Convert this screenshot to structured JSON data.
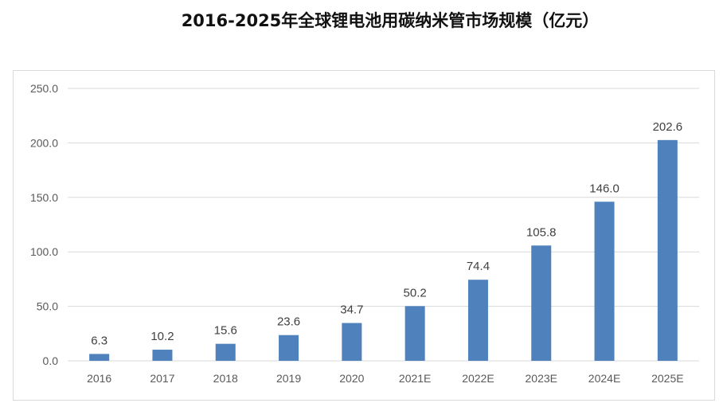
{
  "chart_data": {
    "type": "bar",
    "title": "2016-2025年全球锂电池用碳纳米管市场规模（亿元）",
    "categories": [
      "2016",
      "2017",
      "2018",
      "2019",
      "2020",
      "2021E",
      "2022E",
      "2023E",
      "2024E",
      "2025E"
    ],
    "values": [
      6.3,
      10.2,
      15.6,
      23.6,
      34.7,
      50.2,
      74.4,
      105.8,
      146.0,
      202.6
    ],
    "value_labels": [
      "6.3",
      "10.2",
      "15.6",
      "23.6",
      "34.7",
      "50.2",
      "74.4",
      "105.8",
      "146.0",
      "202.6"
    ],
    "yticks": [
      "0.0",
      "50.0",
      "100.0",
      "150.0",
      "200.0",
      "250.0"
    ],
    "ylim": [
      0,
      250
    ],
    "xlabel": "",
    "ylabel": "",
    "grid": true,
    "bar_color": "#4f81bd"
  }
}
